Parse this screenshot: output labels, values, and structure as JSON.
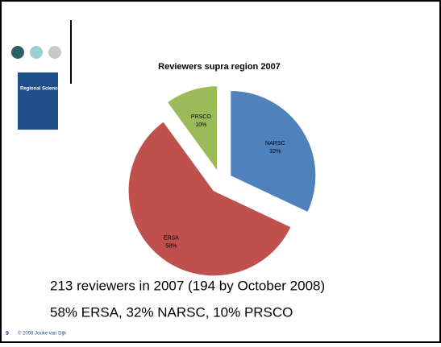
{
  "slide": {
    "cover_title": "Regional Science",
    "line1": "213 reviewers in 2007 (194 by October 2008)",
    "line2": "58%  ERSA, 32% NARSC, 10% PRSCO",
    "page_number": "9",
    "footer": "© 2008 Jouke van Dijk"
  },
  "chart_data": {
    "type": "pie",
    "title": "Reviewers supra region 2007",
    "categories": [
      "NARSC",
      "ERSA",
      "PRSCO"
    ],
    "values": [
      32,
      58,
      10
    ],
    "value_labels": [
      "32%",
      "58%",
      "10%"
    ],
    "colors": [
      "#4f81bd",
      "#c0504d",
      "#9bbb59"
    ]
  }
}
